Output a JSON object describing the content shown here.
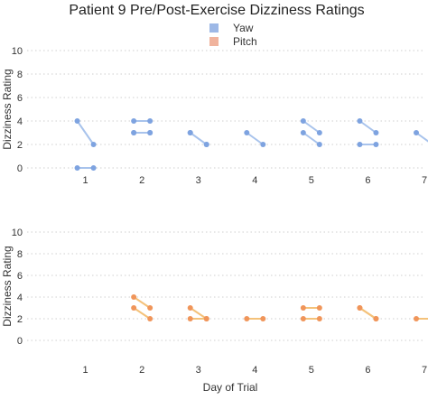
{
  "chart_data": {
    "type": "line",
    "title": "Patient 9 Pre/Post-Exercise Dizziness Ratings",
    "legend": {
      "placement": "top-center",
      "entries": [
        {
          "label": "Yaw",
          "color": "#9db8e6"
        },
        {
          "label": "Pitch",
          "color": "#f0b39d"
        }
      ]
    },
    "xlabel": "Day of Trial",
    "x_ticks": [
      "1",
      "2",
      "3",
      "4",
      "5",
      "6",
      "7"
    ],
    "x_range": [
      0,
      7
    ],
    "grid": "horizontal dotted",
    "panels": [
      {
        "series_name": "Yaw",
        "ylabel": "Dizziness Rating",
        "ylim": [
          0,
          10
        ],
        "y_ticks": [
          "0",
          "2",
          "4",
          "6",
          "8",
          "10"
        ],
        "line_color": "#a8c3ec",
        "marker_color": "#7ea3e0",
        "pairs": [
          {
            "day": 1,
            "pre": 4,
            "post": 2
          },
          {
            "day": 1,
            "pre": 0,
            "post": 0
          },
          {
            "day": 2,
            "pre": 4,
            "post": 4
          },
          {
            "day": 2,
            "pre": 3,
            "post": 3
          },
          {
            "day": 2,
            "pre": 3,
            "post": 3
          },
          {
            "day": 3,
            "pre": 3,
            "post": 2
          },
          {
            "day": 3,
            "pre": 3,
            "post": 2
          },
          {
            "day": 4,
            "pre": 3,
            "post": 2
          },
          {
            "day": 5,
            "pre": 4,
            "post": 3
          },
          {
            "day": 5,
            "pre": 3,
            "post": 2
          },
          {
            "day": 6,
            "pre": 4,
            "post": 3
          },
          {
            "day": 6,
            "pre": 2,
            "post": 2
          },
          {
            "day": 7,
            "pre": 3,
            "post": 2
          }
        ]
      },
      {
        "series_name": "Pitch",
        "ylabel": "Dizziness Rating",
        "ylim": [
          0,
          10
        ],
        "y_ticks": [
          "0",
          "2",
          "4",
          "6",
          "8",
          "10"
        ],
        "line_color": "#f4c27a",
        "marker_color": "#f0955a",
        "pairs": [
          {
            "day": 2,
            "pre": 4,
            "post": 3
          },
          {
            "day": 2,
            "pre": 3,
            "post": 2
          },
          {
            "day": 3,
            "pre": 3,
            "post": 2
          },
          {
            "day": 3,
            "pre": 2,
            "post": 2
          },
          {
            "day": 4,
            "pre": 2,
            "post": 2
          },
          {
            "day": 5,
            "pre": 3,
            "post": 3
          },
          {
            "day": 5,
            "pre": 2,
            "post": 2
          },
          {
            "day": 6,
            "pre": 3,
            "post": 2
          },
          {
            "day": 6,
            "pre": 3,
            "post": 2
          },
          {
            "day": 7,
            "pre": 2,
            "post": 2
          }
        ]
      }
    ]
  }
}
